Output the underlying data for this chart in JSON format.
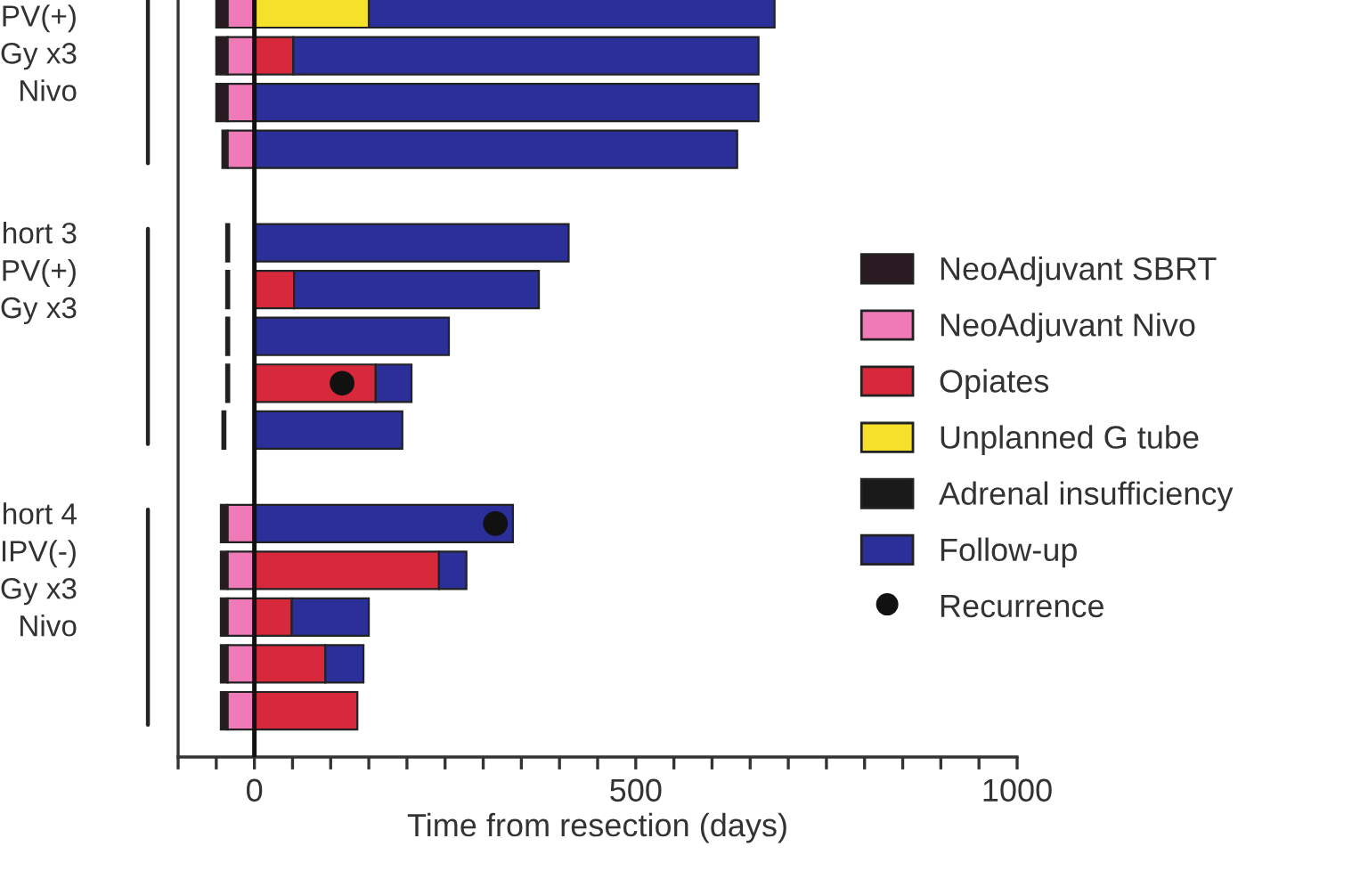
{
  "chart_data": {
    "type": "bar",
    "orientation": "horizontal",
    "xlabel": "Time from resection (days)",
    "categories": [
      null,
      null,
      null,
      null,
      null,
      null,
      null,
      null,
      null,
      null,
      null,
      null,
      null,
      null,
      null,
      null
    ],
    "annotations": [
      "PV(+)\nGy x3\nNivo",
      "hort 3\nPV(+)\nGy x3",
      "hort 4\nIPV(-)\nGy x3\nNivo"
    ],
    "xlim": [
      -100,
      1000
    ],
    "xticks": [
      {
        "value": -100,
        "label": null
      },
      {
        "value": -50,
        "label": null
      },
      0,
      {
        "value": 50,
        "label": null
      },
      {
        "value": 100,
        "label": null
      },
      {
        "value": 150,
        "label": null
      },
      {
        "value": 200,
        "label": null
      },
      {
        "value": 250,
        "label": null
      },
      {
        "value": 300,
        "label": null
      },
      {
        "value": 350,
        "label": null
      },
      {
        "value": 400,
        "label": null
      },
      {
        "value": 450,
        "label": null
      },
      500,
      {
        "value": 550,
        "label": null
      },
      {
        "value": 600,
        "label": null
      },
      {
        "value": 650,
        "label": null
      },
      {
        "value": 700,
        "label": null
      },
      {
        "value": 750,
        "label": null
      },
      {
        "value": 800,
        "label": null
      },
      {
        "value": 850,
        "label": null
      },
      {
        "value": 900,
        "label": null
      },
      {
        "value": 950,
        "label": null
      },
      1000
    ],
    "ref_lines": [
      {
        "axis": "x",
        "value": 0,
        "color": "#111111"
      }
    ],
    "legend": "center right",
    "grid": false,
    "series": [
      {
        "name": "NeoAdjuvant SBRT",
        "color": "#2a1a22",
        "base": [
          -50,
          -50,
          -50,
          -42,
          null,
          -37,
          -37,
          -37,
          -37,
          -42,
          null,
          -44,
          -44,
          -44,
          -44,
          -44
        ],
        "values": [
          15,
          15,
          15,
          7,
          null,
          4,
          4,
          4,
          4,
          4,
          null,
          9,
          9,
          9,
          9,
          9
        ]
      },
      {
        "name": "NeoAdjuvant Nivo",
        "color": "#f07ab8",
        "base": [
          -35,
          -35,
          -35,
          -35,
          null,
          null,
          null,
          null,
          null,
          null,
          null,
          -35,
          -35,
          -35,
          -35,
          -35
        ],
        "values": [
          35,
          35,
          35,
          35,
          null,
          null,
          null,
          null,
          null,
          null,
          null,
          35,
          35,
          35,
          35,
          35
        ]
      },
      {
        "name": "Opiates",
        "color": "#d8283c",
        "base": [
          null,
          0,
          null,
          null,
          null,
          null,
          0,
          null,
          0,
          null,
          null,
          null,
          0,
          0,
          0,
          0
        ],
        "values": [
          null,
          51,
          null,
          null,
          null,
          null,
          52,
          null,
          159,
          null,
          null,
          null,
          242,
          49,
          93,
          135
        ]
      },
      {
        "name": "Unplanned G tube",
        "color": "#f5e02a",
        "base": [
          0,
          null,
          null,
          null,
          null,
          null,
          null,
          null,
          null,
          null,
          null,
          null,
          null,
          null,
          null,
          null
        ],
        "values": [
          150,
          null,
          null,
          null,
          null,
          null,
          null,
          null,
          null,
          null,
          null,
          null,
          null,
          null,
          null,
          null
        ]
      },
      {
        "name": "Adrenal insufficiency",
        "base": [
          null,
          null,
          null,
          null,
          null,
          null,
          null,
          null,
          null,
          null,
          null,
          null,
          null,
          null,
          null,
          null
        ],
        "values": [
          null,
          null,
          null,
          null,
          null,
          null,
          null,
          null,
          null,
          null,
          null,
          null,
          null,
          null,
          null,
          null
        ]
      },
      {
        "name": "Follow-up",
        "color": "#2b2f9a",
        "base": [
          150,
          51,
          0,
          0,
          null,
          0,
          52,
          0,
          159,
          0,
          null,
          0,
          242,
          49,
          93,
          null
        ],
        "values": [
          532,
          610,
          661,
          633,
          null,
          412,
          321,
          255,
          47,
          194,
          null,
          339,
          36,
          101,
          50,
          null
        ]
      },
      {
        "name": "Recurrence",
        "type": "scatter",
        "color": "#111111",
        "marker": "circle",
        "values": [
          null,
          null,
          null,
          null,
          null,
          null,
          null,
          null,
          115,
          null,
          null,
          316,
          null,
          null,
          null,
          null
        ]
      }
    ]
  }
}
